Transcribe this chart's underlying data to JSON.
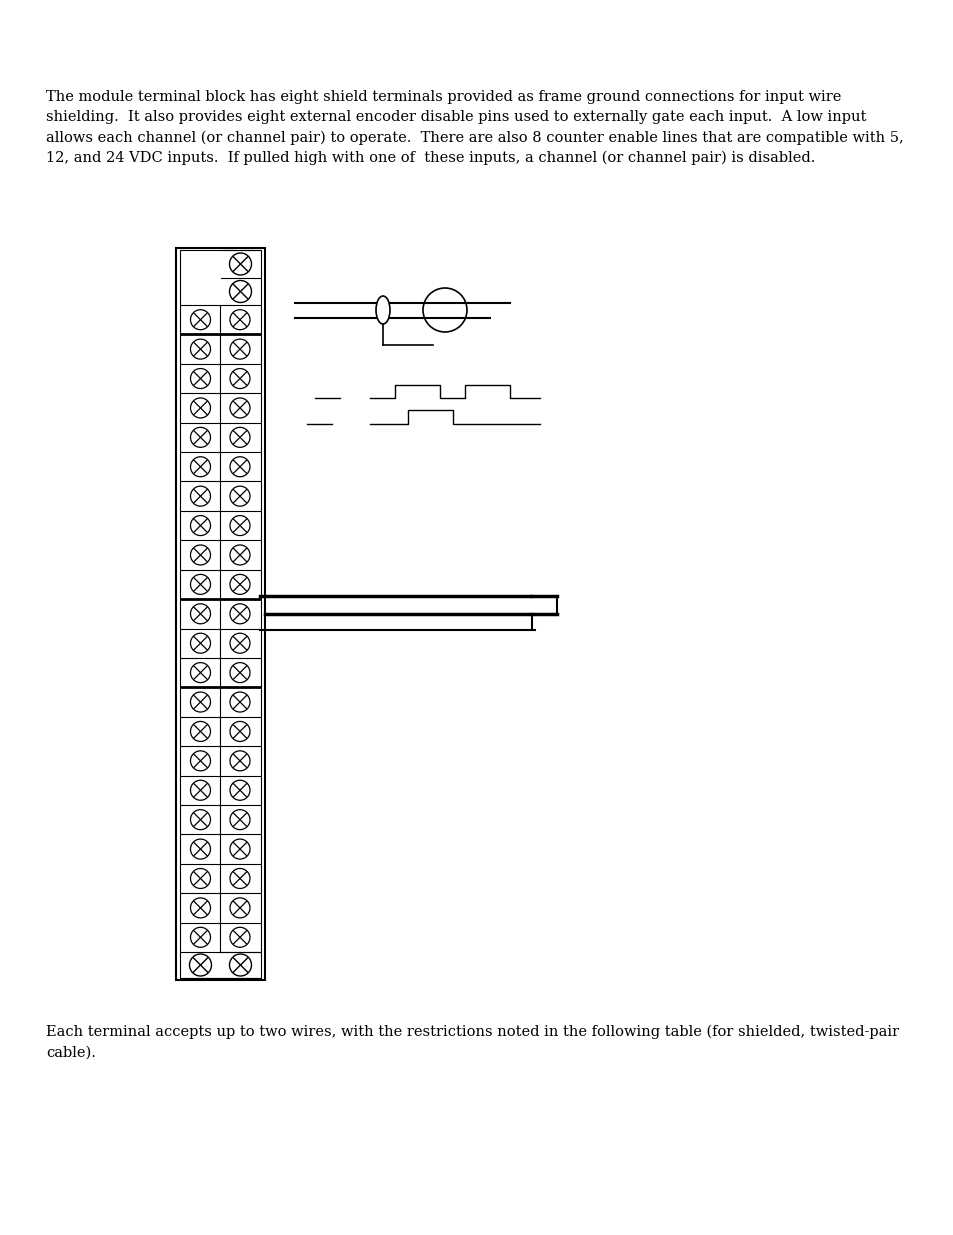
{
  "bg_color": "#ffffff",
  "text_color": "#000000",
  "top_text": "The module terminal block has eight shield terminals provided as frame ground connections for input wire\nshielding.  It also provides eight external encoder disable pins used to externally gate each input.  A low input\nallows each channel (or channel pair) to operate.  There are also 8 counter enable lines that are compatible with 5,\n12, and 24 VDC inputs.  If pulled high with one of  these inputs, a channel (or channel pair) is disabled.",
  "bottom_text": "Each terminal accepts up to two wires, with the restrictions noted in the following table (for shielded, twisted-pair\ncable).",
  "font_size": 10.5
}
